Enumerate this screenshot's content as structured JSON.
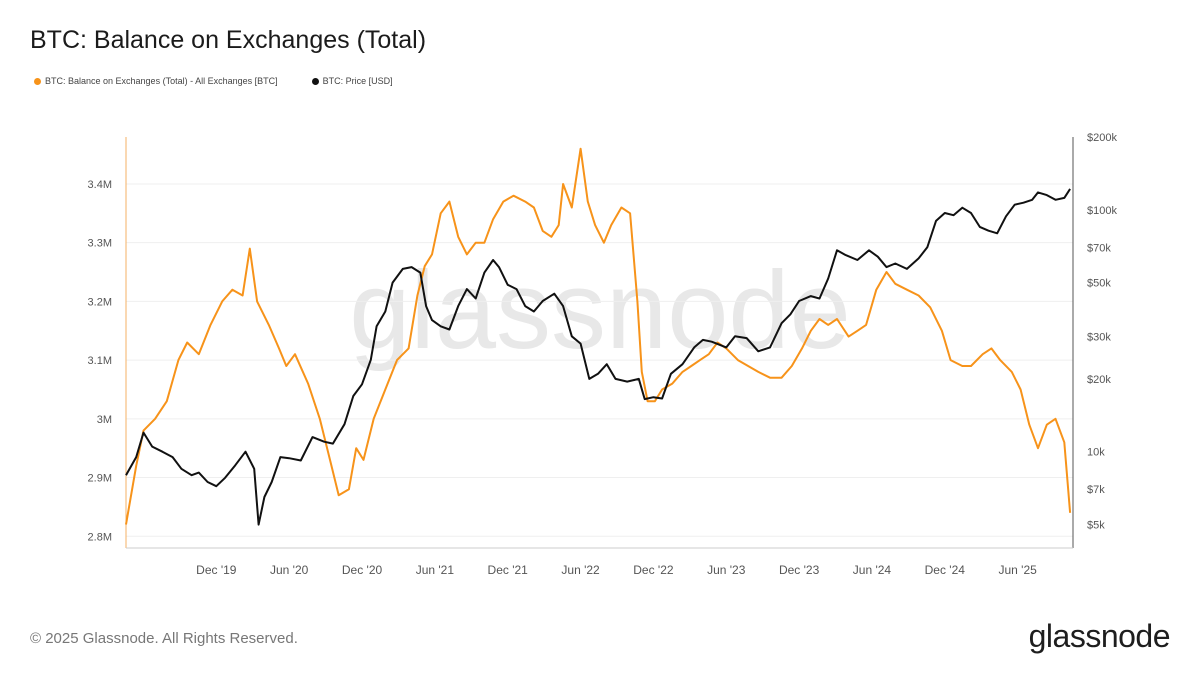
{
  "title": "BTC: Balance on Exchanges (Total)",
  "legend": [
    {
      "label": "BTC: Balance on Exchanges (Total) - All Exchanges [BTC]",
      "color": "#f7931a"
    },
    {
      "label": "BTC: Price [USD]",
      "color": "#111111"
    }
  ],
  "footer": {
    "copyright": "© 2025 Glassnode. All Rights Reserved.",
    "logo": "glassnode"
  },
  "watermark": "glassnode",
  "chart_data": {
    "type": "line",
    "title": "BTC: Balance on Exchanges (Total)",
    "x_range": [
      2019.3,
      2025.8
    ],
    "x_ticks": [
      {
        "label": "Dec '19",
        "x": 2019.92
      },
      {
        "label": "Jun '20",
        "x": 2020.42
      },
      {
        "label": "Dec '20",
        "x": 2020.92
      },
      {
        "label": "Jun '21",
        "x": 2021.42
      },
      {
        "label": "Dec '21",
        "x": 2021.92
      },
      {
        "label": "Jun '22",
        "x": 2022.42
      },
      {
        "label": "Dec '22",
        "x": 2022.92
      },
      {
        "label": "Jun '23",
        "x": 2023.42
      },
      {
        "label": "Dec '23",
        "x": 2023.92
      },
      {
        "label": "Jun '24",
        "x": 2024.42
      },
      {
        "label": "Dec '24",
        "x": 2024.92
      },
      {
        "label": "Jun '25",
        "x": 2025.42
      }
    ],
    "left_axis": {
      "scale": "linear",
      "ylim": [
        2.78,
        3.48
      ],
      "ticks": [
        {
          "label": "2.8M",
          "v": 2.8
        },
        {
          "label": "2.9M",
          "v": 2.9
        },
        {
          "label": "3M",
          "v": 3.0
        },
        {
          "label": "3.1M",
          "v": 3.1
        },
        {
          "label": "3.2M",
          "v": 3.2
        },
        {
          "label": "3.3M",
          "v": 3.3
        },
        {
          "label": "3.4M",
          "v": 3.4
        }
      ]
    },
    "right_axis": {
      "scale": "log",
      "ylim": [
        4000,
        200000
      ],
      "ticks": [
        {
          "label": "$5k",
          "v": 5000
        },
        {
          "label": "$7k",
          "v": 7000
        },
        {
          "label": "10k",
          "v": 10000
        },
        {
          "label": "$20k",
          "v": 20000
        },
        {
          "label": "$30k",
          "v": 30000
        },
        {
          "label": "$50k",
          "v": 50000
        },
        {
          "label": "$70k",
          "v": 70000
        },
        {
          "label": "$100k",
          "v": 100000
        },
        {
          "label": "$200k",
          "v": 200000
        }
      ]
    },
    "series": [
      {
        "name": "BTC: Balance on Exchanges (Total) - All Exchanges [BTC]",
        "axis": "left",
        "unit": "M BTC",
        "color": "#f7931a",
        "points": [
          [
            2019.3,
            2.82
          ],
          [
            2019.37,
            2.92
          ],
          [
            2019.42,
            2.98
          ],
          [
            2019.5,
            3.0
          ],
          [
            2019.58,
            3.03
          ],
          [
            2019.66,
            3.1
          ],
          [
            2019.72,
            3.13
          ],
          [
            2019.8,
            3.11
          ],
          [
            2019.88,
            3.16
          ],
          [
            2019.96,
            3.2
          ],
          [
            2020.03,
            3.22
          ],
          [
            2020.1,
            3.21
          ],
          [
            2020.15,
            3.29
          ],
          [
            2020.2,
            3.2
          ],
          [
            2020.28,
            3.16
          ],
          [
            2020.35,
            3.12
          ],
          [
            2020.4,
            3.09
          ],
          [
            2020.46,
            3.11
          ],
          [
            2020.55,
            3.06
          ],
          [
            2020.63,
            3.0
          ],
          [
            2020.7,
            2.93
          ],
          [
            2020.76,
            2.87
          ],
          [
            2020.83,
            2.88
          ],
          [
            2020.88,
            2.95
          ],
          [
            2020.93,
            2.93
          ],
          [
            2021.0,
            3.0
          ],
          [
            2021.08,
            3.05
          ],
          [
            2021.16,
            3.1
          ],
          [
            2021.24,
            3.12
          ],
          [
            2021.3,
            3.21
          ],
          [
            2021.35,
            3.26
          ],
          [
            2021.4,
            3.28
          ],
          [
            2021.46,
            3.35
          ],
          [
            2021.52,
            3.37
          ],
          [
            2021.58,
            3.31
          ],
          [
            2021.64,
            3.28
          ],
          [
            2021.7,
            3.3
          ],
          [
            2021.76,
            3.3
          ],
          [
            2021.82,
            3.34
          ],
          [
            2021.89,
            3.37
          ],
          [
            2021.96,
            3.38
          ],
          [
            2022.04,
            3.37
          ],
          [
            2022.1,
            3.36
          ],
          [
            2022.16,
            3.32
          ],
          [
            2022.22,
            3.31
          ],
          [
            2022.27,
            3.33
          ],
          [
            2022.3,
            3.4
          ],
          [
            2022.36,
            3.36
          ],
          [
            2022.42,
            3.46
          ],
          [
            2022.47,
            3.37
          ],
          [
            2022.52,
            3.33
          ],
          [
            2022.58,
            3.3
          ],
          [
            2022.63,
            3.33
          ],
          [
            2022.7,
            3.36
          ],
          [
            2022.76,
            3.35
          ],
          [
            2022.81,
            3.2
          ],
          [
            2022.84,
            3.08
          ],
          [
            2022.88,
            3.03
          ],
          [
            2022.93,
            3.03
          ],
          [
            2022.98,
            3.05
          ],
          [
            2023.05,
            3.06
          ],
          [
            2023.12,
            3.08
          ],
          [
            2023.18,
            3.09
          ],
          [
            2023.24,
            3.1
          ],
          [
            2023.3,
            3.11
          ],
          [
            2023.36,
            3.13
          ],
          [
            2023.42,
            3.12
          ],
          [
            2023.5,
            3.1
          ],
          [
            2023.57,
            3.09
          ],
          [
            2023.64,
            3.08
          ],
          [
            2023.72,
            3.07
          ],
          [
            2023.8,
            3.07
          ],
          [
            2023.87,
            3.09
          ],
          [
            2023.94,
            3.12
          ],
          [
            2024.0,
            3.15
          ],
          [
            2024.06,
            3.17
          ],
          [
            2024.12,
            3.16
          ],
          [
            2024.18,
            3.17
          ],
          [
            2024.26,
            3.14
          ],
          [
            2024.32,
            3.15
          ],
          [
            2024.38,
            3.16
          ],
          [
            2024.45,
            3.22
          ],
          [
            2024.52,
            3.25
          ],
          [
            2024.58,
            3.23
          ],
          [
            2024.66,
            3.22
          ],
          [
            2024.74,
            3.21
          ],
          [
            2024.82,
            3.19
          ],
          [
            2024.9,
            3.15
          ],
          [
            2024.96,
            3.1
          ],
          [
            2025.04,
            3.09
          ],
          [
            2025.1,
            3.09
          ],
          [
            2025.18,
            3.11
          ],
          [
            2025.24,
            3.12
          ],
          [
            2025.3,
            3.1
          ],
          [
            2025.38,
            3.08
          ],
          [
            2025.44,
            3.05
          ],
          [
            2025.5,
            2.99
          ],
          [
            2025.56,
            2.95
          ],
          [
            2025.62,
            2.99
          ],
          [
            2025.68,
            3.0
          ],
          [
            2025.74,
            2.96
          ],
          [
            2025.78,
            2.84
          ]
        ]
      },
      {
        "name": "BTC: Price [USD]",
        "axis": "right",
        "unit": "USD",
        "color": "#111111",
        "points": [
          [
            2019.3,
            8000
          ],
          [
            2019.37,
            9500
          ],
          [
            2019.42,
            12000
          ],
          [
            2019.48,
            10500
          ],
          [
            2019.55,
            10000
          ],
          [
            2019.62,
            9500
          ],
          [
            2019.68,
            8500
          ],
          [
            2019.75,
            8000
          ],
          [
            2019.8,
            8200
          ],
          [
            2019.86,
            7500
          ],
          [
            2019.92,
            7200
          ],
          [
            2019.98,
            7800
          ],
          [
            2020.05,
            8800
          ],
          [
            2020.12,
            10000
          ],
          [
            2020.18,
            8500
          ],
          [
            2020.21,
            5000
          ],
          [
            2020.25,
            6500
          ],
          [
            2020.3,
            7500
          ],
          [
            2020.36,
            9500
          ],
          [
            2020.42,
            9400
          ],
          [
            2020.5,
            9200
          ],
          [
            2020.58,
            11500
          ],
          [
            2020.66,
            11000
          ],
          [
            2020.72,
            10800
          ],
          [
            2020.8,
            13000
          ],
          [
            2020.86,
            17000
          ],
          [
            2020.92,
            19000
          ],
          [
            2020.98,
            24000
          ],
          [
            2021.02,
            33000
          ],
          [
            2021.08,
            38000
          ],
          [
            2021.13,
            50000
          ],
          [
            2021.2,
            57000
          ],
          [
            2021.26,
            58000
          ],
          [
            2021.32,
            55000
          ],
          [
            2021.36,
            40000
          ],
          [
            2021.4,
            35000
          ],
          [
            2021.46,
            33000
          ],
          [
            2021.52,
            32000
          ],
          [
            2021.58,
            40000
          ],
          [
            2021.64,
            47000
          ],
          [
            2021.7,
            43000
          ],
          [
            2021.76,
            55000
          ],
          [
            2021.82,
            62000
          ],
          [
            2021.86,
            58000
          ],
          [
            2021.92,
            49000
          ],
          [
            2021.98,
            47000
          ],
          [
            2022.04,
            40000
          ],
          [
            2022.1,
            38000
          ],
          [
            2022.16,
            42000
          ],
          [
            2022.24,
            45000
          ],
          [
            2022.3,
            40000
          ],
          [
            2022.36,
            30000
          ],
          [
            2022.42,
            28000
          ],
          [
            2022.48,
            20000
          ],
          [
            2022.54,
            21000
          ],
          [
            2022.6,
            23000
          ],
          [
            2022.66,
            20000
          ],
          [
            2022.74,
            19500
          ],
          [
            2022.82,
            20000
          ],
          [
            2022.86,
            16500
          ],
          [
            2022.92,
            16800
          ],
          [
            2022.98,
            16600
          ],
          [
            2023.04,
            21000
          ],
          [
            2023.12,
            23000
          ],
          [
            2023.2,
            27000
          ],
          [
            2023.26,
            29000
          ],
          [
            2023.32,
            28500
          ],
          [
            2023.42,
            27000
          ],
          [
            2023.48,
            30000
          ],
          [
            2023.56,
            29500
          ],
          [
            2023.64,
            26000
          ],
          [
            2023.72,
            27000
          ],
          [
            2023.8,
            34000
          ],
          [
            2023.86,
            37000
          ],
          [
            2023.92,
            42000
          ],
          [
            2024.0,
            44000
          ],
          [
            2024.06,
            43000
          ],
          [
            2024.12,
            52000
          ],
          [
            2024.18,
            68000
          ],
          [
            2024.24,
            65000
          ],
          [
            2024.32,
            62000
          ],
          [
            2024.4,
            68000
          ],
          [
            2024.46,
            64000
          ],
          [
            2024.52,
            58000
          ],
          [
            2024.58,
            60000
          ],
          [
            2024.66,
            57000
          ],
          [
            2024.74,
            63000
          ],
          [
            2024.8,
            70000
          ],
          [
            2024.86,
            90000
          ],
          [
            2024.92,
            97000
          ],
          [
            2024.98,
            95000
          ],
          [
            2025.04,
            102000
          ],
          [
            2025.1,
            97000
          ],
          [
            2025.16,
            85000
          ],
          [
            2025.22,
            82000
          ],
          [
            2025.28,
            80000
          ],
          [
            2025.34,
            94000
          ],
          [
            2025.4,
            105000
          ],
          [
            2025.46,
            107000
          ],
          [
            2025.52,
            110000
          ],
          [
            2025.56,
            118000
          ],
          [
            2025.62,
            115000
          ],
          [
            2025.68,
            110000
          ],
          [
            2025.74,
            112000
          ],
          [
            2025.78,
            122000
          ]
        ]
      }
    ]
  }
}
